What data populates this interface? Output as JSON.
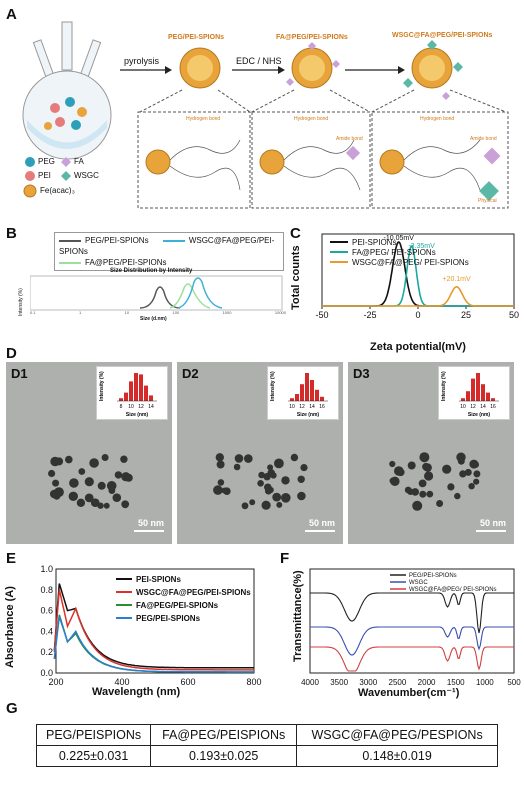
{
  "panels": {
    "A": "A",
    "B": "B",
    "C": "C",
    "D": "D",
    "E": "E",
    "F": "F",
    "G": "G"
  },
  "schematic": {
    "step1": "pyrolysis",
    "step2": "EDC / NHS",
    "np1": "PEG/PEI-SPIONs",
    "np2": "FA@PEG/PEI-SPIONs",
    "np3": "WSGC@FA@PEG/PEI-SPIONs",
    "legend": [
      {
        "label": "PEG",
        "color": "#2e9fb8"
      },
      {
        "label": "FA",
        "color": "#c9a0d8"
      },
      {
        "label": "PEI",
        "color": "#e57b7b"
      },
      {
        "label": "WSGC",
        "color": "#5ab8a6"
      },
      {
        "label": "Fe(acac)₃",
        "color": "#e8a33a"
      }
    ],
    "hbond1": "Hydrogen bond",
    "hbond2": "Hydrogen bond",
    "hbond3": "Hydrogen bond",
    "amide1": "Amide bond",
    "amide2": "Amide bond",
    "physical": "Physical"
  },
  "panelB": {
    "title": "Size Distribution by Intensity",
    "xlabel": "Size (d.nm)",
    "ylabel": "Intensity (%)",
    "legend": [
      "PEG/PEI-SPIONs",
      "WSGC@FA@PEG/PEI-SPIONs",
      "FA@PEG/PEI-SPIONs"
    ],
    "colors": [
      "#555555",
      "#3bb0d8",
      "#9be09b"
    ],
    "xticks": [
      "0.1",
      "1",
      "10",
      "100",
      "1000",
      "10000"
    ]
  },
  "chart_data": [
    {
      "type": "line",
      "title": "",
      "xlabel": "Zeta potential(mV)",
      "ylabel": "Total counts",
      "xlim": [
        -50,
        50
      ],
      "xticks": [
        "-50",
        "-25",
        "0",
        "25",
        "50"
      ],
      "series": [
        {
          "name": "PEI-SPIONs",
          "color": "#111111",
          "peak": -10.05,
          "width": 3.2,
          "height": 1.0
        },
        {
          "name": "FA@PEG/ PEI-SPIONs",
          "color": "#1aa9a0",
          "peak": -3.35,
          "width": 2.4,
          "height": 0.94
        },
        {
          "name": "WSGC@FA@PEG/ PEI-SPIONs",
          "color": "#e69a2e",
          "peak": 20.1,
          "width": 3.0,
          "height": 0.3
        }
      ],
      "annotations": [
        {
          "text": "-10.05mV",
          "x": -10.05
        },
        {
          "text": "-3.35mV",
          "x": -3.35
        },
        {
          "text": "+20.1mV",
          "x": 20.1
        }
      ]
    },
    {
      "type": "line",
      "title": "",
      "xlabel": "Wavelength (nm)",
      "ylabel": "Absorbance (A)",
      "xlim": [
        200,
        800
      ],
      "ylim": [
        0.0,
        1.0
      ],
      "xticks": [
        "200",
        "400",
        "600",
        "800"
      ],
      "yticks": [
        "0.0",
        "0.2",
        "0.4",
        "0.6",
        "0.8",
        "1.0"
      ],
      "series": [
        {
          "name": "PEI-SPIONs",
          "color": "#111111"
        },
        {
          "name": "WSGC@FA@PEG/PEI-SPIONs",
          "color": "#d9332a"
        },
        {
          "name": "FA@PEG/PEI-SPIONs",
          "color": "#2a8f2a"
        },
        {
          "name": "PEG/PEI-SPIONs",
          "color": "#2a7fd4"
        }
      ]
    },
    {
      "type": "line",
      "title": "",
      "xlabel": "Wavenumber(cm⁻¹)",
      "ylabel": "Transmittance(%)",
      "xlim": [
        4000,
        500
      ],
      "xticks": [
        "4000",
        "3500",
        "3000",
        "2500",
        "2000",
        "1500",
        "1000",
        "500"
      ],
      "series": [
        {
          "name": "PEG/PEI-SPIONs",
          "color": "#222222"
        },
        {
          "name": "WSGC",
          "color": "#3a4fb0"
        },
        {
          "name": "WSGC@FA@PEG/ PEI-SPIONs",
          "color": "#d04040"
        }
      ]
    }
  ],
  "panelD": [
    {
      "label": "D1",
      "scale": "50 nm",
      "bars": [
        0.1,
        0.3,
        0.7,
        1.0,
        0.95,
        0.55,
        0.2
      ],
      "ticks": [
        "8",
        "10",
        "12",
        "14"
      ]
    },
    {
      "label": "D2",
      "scale": "50 nm",
      "bars": [
        0.1,
        0.25,
        0.6,
        1.0,
        0.75,
        0.4,
        0.15
      ],
      "ticks": [
        "10",
        "12",
        "14",
        "16"
      ]
    },
    {
      "label": "D3",
      "scale": "50 nm",
      "bars": [
        0.1,
        0.35,
        0.8,
        1.0,
        0.6,
        0.3,
        0.1
      ],
      "ticks": [
        "10",
        "12",
        "14",
        "16"
      ]
    }
  ],
  "insetLabels": {
    "y": "Intensity (%)",
    "x": "Size (nm)"
  },
  "table": {
    "headers": [
      "PEG/PEISPIONs",
      "FA@PEG/PEISPIONs",
      "WSGC@FA@PEG/PESPIONs"
    ],
    "values": [
      "0.225±0.031",
      "0.193±0.025",
      "0.148±0.019"
    ]
  }
}
